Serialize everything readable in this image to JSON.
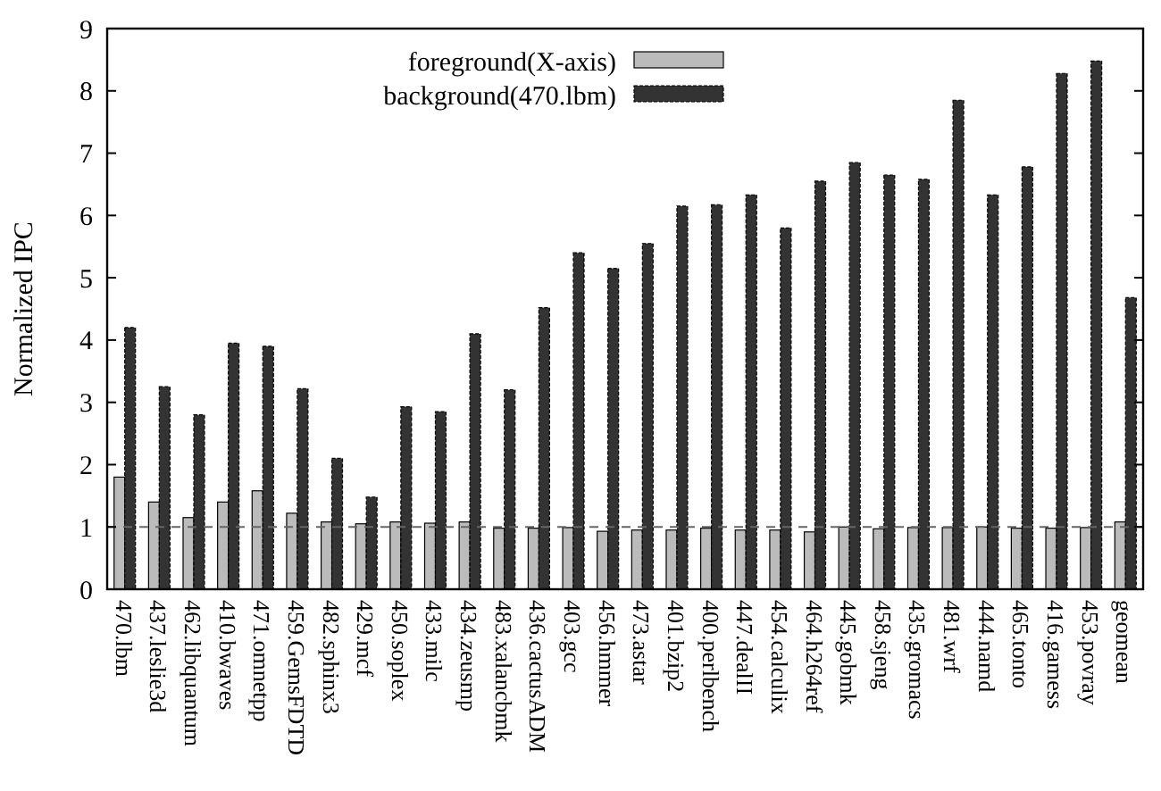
{
  "chart_data": {
    "type": "bar",
    "ylabel": "Normalized IPC",
    "categories": [
      "470.lbm",
      "437.leslie3d",
      "462.libquantum",
      "410.bwaves",
      "471.omnetpp",
      "459.GemsFDTD",
      "482.sphinx3",
      "429.mcf",
      "450.soplex",
      "433.milc",
      "434.zeusmp",
      "483.xalancbmk",
      "436.cactusADM",
      "403.gcc",
      "456.hmmer",
      "473.astar",
      "401.bzip2",
      "400.perlbench",
      "447.dealII",
      "454.calculix",
      "464.h264ref",
      "445.gobmk",
      "458.sjeng",
      "435.gromacs",
      "481.wrf",
      "444.namd",
      "465.tonto",
      "416.gamess",
      "453.povray",
      "geomean"
    ],
    "series": [
      {
        "name": "foreground(X-axis)",
        "color": "#bbbbbb",
        "values": [
          1.8,
          1.4,
          1.15,
          1.4,
          1.58,
          1.22,
          1.08,
          1.05,
          1.08,
          1.06,
          1.08,
          0.98,
          0.98,
          0.99,
          0.93,
          0.95,
          0.95,
          0.98,
          0.95,
          0.95,
          0.92,
          1.0,
          0.97,
          0.99,
          0.99,
          1.0,
          0.98,
          0.98,
          0.99,
          1.08
        ]
      },
      {
        "name": "background(470.lbm)",
        "color": "#333333",
        "values": [
          4.2,
          3.25,
          2.8,
          3.95,
          3.9,
          3.22,
          2.1,
          1.48,
          2.93,
          2.85,
          4.1,
          3.2,
          4.52,
          5.4,
          5.15,
          5.55,
          6.15,
          6.17,
          6.33,
          5.8,
          6.55,
          6.85,
          6.65,
          6.58,
          7.85,
          6.33,
          6.78,
          8.28,
          8.48,
          4.68
        ]
      }
    ],
    "ylim": [
      0,
      9
    ],
    "yticks": [
      0,
      1,
      2,
      3,
      4,
      5,
      6,
      7,
      8,
      9
    ],
    "grid": false,
    "legend": "top left",
    "ref_lines": [
      {
        "axis": "y",
        "value": 1,
        "color": "#666666",
        "line_style": "dashed"
      }
    ]
  }
}
